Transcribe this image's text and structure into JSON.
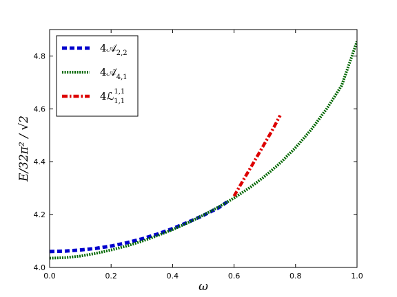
{
  "chart_data": {
    "type": "line",
    "title": "",
    "xlabel": "ω",
    "ylabel": "E/32π² / √2",
    "xlim": [
      0.0,
      1.0
    ],
    "ylim": [
      4.0,
      4.9
    ],
    "xticks": [
      "0.0",
      "0.2",
      "0.4",
      "0.6",
      "0.8",
      "1.0"
    ],
    "yticks": [
      "4.0",
      "4.2",
      "4.4",
      "4.6",
      "4.8"
    ],
    "grid": false,
    "legend_position": "top-left",
    "series": [
      {
        "name": "4A_{2,2}",
        "legend_main": "4𝒜",
        "legend_sub": "2,2",
        "legend_sup": "",
        "color": "#0000cc",
        "style": "dashed-thick",
        "x": [
          0.0,
          0.05,
          0.1,
          0.15,
          0.2,
          0.25,
          0.3,
          0.35,
          0.4,
          0.45,
          0.5,
          0.55,
          0.58
        ],
        "y": [
          4.06,
          4.062,
          4.066,
          4.072,
          4.081,
          4.093,
          4.108,
          4.126,
          4.147,
          4.171,
          4.197,
          4.226,
          4.25
        ]
      },
      {
        "name": "4Ã_{4,1}",
        "legend_main": "4𝒜̃",
        "legend_sub": "4,1",
        "legend_sup": "",
        "color": "#006600",
        "style": "dotted-thick",
        "x": [
          0.0,
          0.05,
          0.1,
          0.15,
          0.2,
          0.25,
          0.3,
          0.35,
          0.4,
          0.45,
          0.5,
          0.55,
          0.6,
          0.65,
          0.7,
          0.75,
          0.8,
          0.85,
          0.9,
          0.95,
          1.0
        ],
        "y": [
          4.035,
          4.037,
          4.043,
          4.053,
          4.066,
          4.081,
          4.099,
          4.12,
          4.143,
          4.169,
          4.198,
          4.229,
          4.263,
          4.301,
          4.345,
          4.395,
          4.453,
          4.52,
          4.598,
          4.688,
          4.855
        ]
      },
      {
        "name": "4L^{1,1}_{1,1}",
        "legend_main": "4ℒ",
        "legend_sub": "1,1",
        "legend_sup": "1,1",
        "color": "#dd0000",
        "style": "dashdot-thick",
        "x": [
          0.6,
          0.62,
          0.64,
          0.66,
          0.68,
          0.7,
          0.72,
          0.75
        ],
        "y": [
          4.27,
          4.31,
          4.35,
          4.39,
          4.43,
          4.47,
          4.51,
          4.575
        ]
      }
    ]
  }
}
